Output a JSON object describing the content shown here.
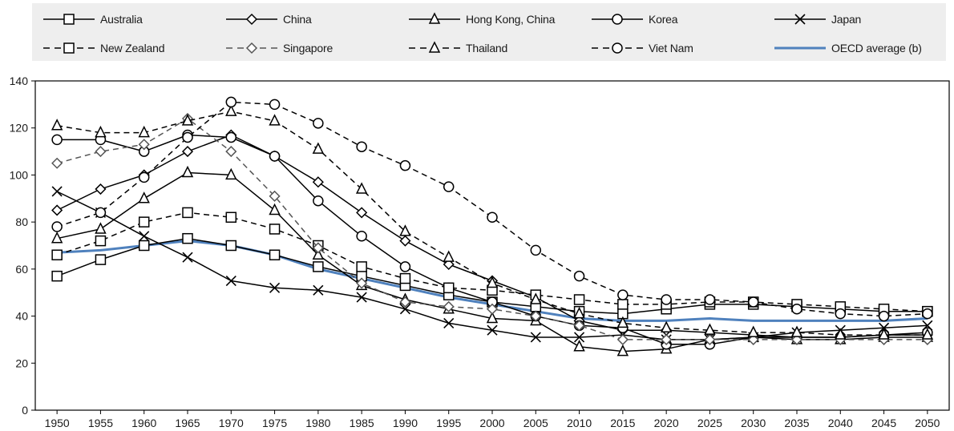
{
  "chart_data": {
    "type": "line",
    "title": "",
    "xlabel": "",
    "ylabel": "",
    "x": [
      1950,
      1955,
      1960,
      1965,
      1970,
      1975,
      1980,
      1985,
      1990,
      1995,
      2000,
      2005,
      2010,
      2015,
      2020,
      2025,
      2030,
      2035,
      2040,
      2045,
      2050
    ],
    "ylim": [
      0,
      140
    ],
    "yticks": [
      0,
      20,
      40,
      60,
      80,
      100,
      120,
      140
    ],
    "grid": false,
    "legend": "top",
    "series": [
      {
        "name": "Australia",
        "style": "solid",
        "marker": "square",
        "color": "#000000",
        "values": [
          57,
          64,
          70,
          73,
          70,
          66,
          61,
          57,
          53,
          49,
          46,
          44,
          42,
          41,
          43,
          45,
          45,
          44,
          43,
          42,
          42
        ]
      },
      {
        "name": "China",
        "style": "solid",
        "marker": "diamond",
        "color": "#000000",
        "values": [
          85,
          94,
          100,
          110,
          117,
          108,
          97,
          84,
          72,
          62,
          55,
          48,
          38,
          34,
          34,
          33,
          32,
          31,
          31,
          32,
          32
        ]
      },
      {
        "name": "Hong Kong, China",
        "style": "solid",
        "marker": "triangle",
        "color": "#000000",
        "values": [
          73,
          77,
          90,
          101,
          100,
          85,
          66,
          53,
          47,
          43,
          39,
          38,
          27,
          25,
          26,
          30,
          31,
          30,
          30,
          31,
          31
        ]
      },
      {
        "name": "Korea",
        "style": "solid",
        "marker": "circle",
        "color": "#000000",
        "values": [
          115,
          115,
          110,
          117,
          116,
          108,
          89,
          74,
          61,
          52,
          46,
          40,
          36,
          35,
          28,
          28,
          31,
          31,
          31,
          32,
          33
        ]
      },
      {
        "name": "Japan",
        "style": "solid",
        "marker": "x",
        "color": "#000000",
        "values": [
          93,
          84,
          74,
          65,
          55,
          52,
          51,
          48,
          43,
          37,
          34,
          31,
          31,
          32,
          30,
          30,
          31,
          33,
          34,
          35,
          36
        ]
      },
      {
        "name": "New Zealand",
        "style": "dashed",
        "marker": "square",
        "color": "#000000",
        "values": [
          66,
          72,
          80,
          84,
          82,
          77,
          70,
          61,
          56,
          52,
          51,
          49,
          47,
          45,
          45,
          46,
          46,
          45,
          44,
          43,
          42
        ]
      },
      {
        "name": "Singapore",
        "style": "dashed",
        "marker": "diamond",
        "color": "#555555",
        "values": [
          105,
          110,
          113,
          124,
          110,
          91,
          69,
          54,
          46,
          44,
          43,
          40,
          36,
          30,
          30,
          30,
          30,
          30,
          30,
          30,
          30
        ]
      },
      {
        "name": "Thailand",
        "style": "dashed",
        "marker": "triangle",
        "color": "#000000",
        "values": [
          121,
          118,
          118,
          123,
          127,
          123,
          111,
          94,
          76,
          65,
          54,
          47,
          41,
          37,
          35,
          34,
          33,
          33,
          32,
          32,
          32
        ]
      },
      {
        "name": "Viet Nam",
        "style": "dashed",
        "marker": "circle",
        "color": "#000000",
        "values": [
          78,
          84,
          99,
          116,
          131,
          130,
          122,
          112,
          104,
          95,
          82,
          68,
          57,
          49,
          47,
          47,
          46,
          43,
          41,
          40,
          41
        ]
      },
      {
        "name": "OECD average (b)",
        "style": "solid",
        "marker": "none",
        "color": "#4f81bd",
        "values": [
          67,
          68,
          70,
          72,
          70,
          66,
          60,
          56,
          52,
          48,
          45,
          42,
          39,
          38,
          38,
          39,
          38,
          38,
          38,
          38,
          39
        ]
      }
    ]
  }
}
